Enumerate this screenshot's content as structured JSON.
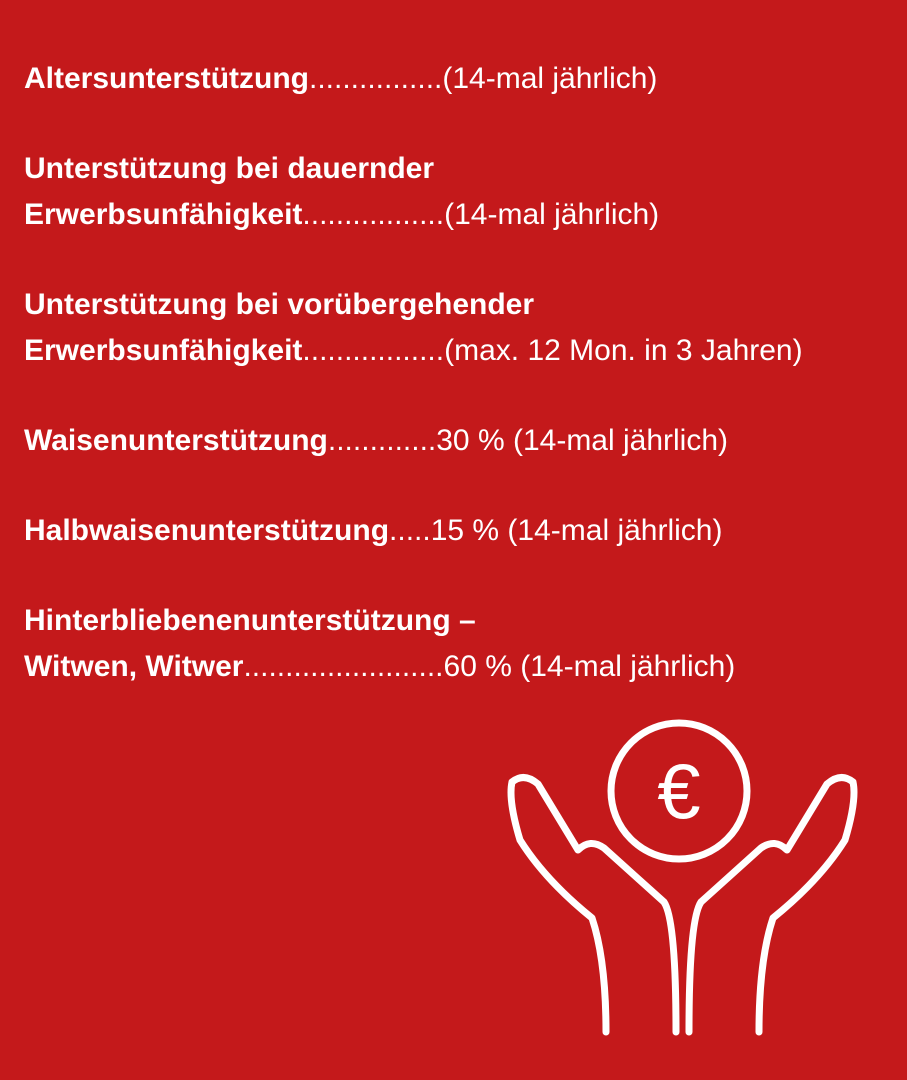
{
  "colors": {
    "background": "#c4191b",
    "text": "#ffffff"
  },
  "items": [
    {
      "lines": [
        "Altersunterstützung"
      ],
      "dots": "................",
      "value": "(14-mal jährlich)"
    },
    {
      "lines": [
        "Unterstützung bei dauernder",
        "Erwerbsunfähigkeit"
      ],
      "dots": ".................",
      "value": "(14-mal jährlich)"
    },
    {
      "lines": [
        "Unterstützung bei vorübergehender",
        "Erwerbsunfähigkeit"
      ],
      "dots": ".................",
      "value": "(max. 12 Mon. in 3 Jahren)"
    },
    {
      "lines": [
        "Waisenunterstützung"
      ],
      "dots": ".............",
      "value": "30 % (14-mal jährlich)"
    },
    {
      "lines": [
        "Halbwaisenunterstützung"
      ],
      "dots": ".....",
      "value": "15 % (14-mal jährlich)"
    },
    {
      "lines": [
        "Hinterbliebenenunterstützung –",
        "Witwen, Witwer"
      ],
      "dots": "........................",
      "value": "60 % (14-mal jährlich)"
    }
  ],
  "icon": {
    "name": "hands-holding-euro-coin-icon",
    "symbol": "€"
  }
}
